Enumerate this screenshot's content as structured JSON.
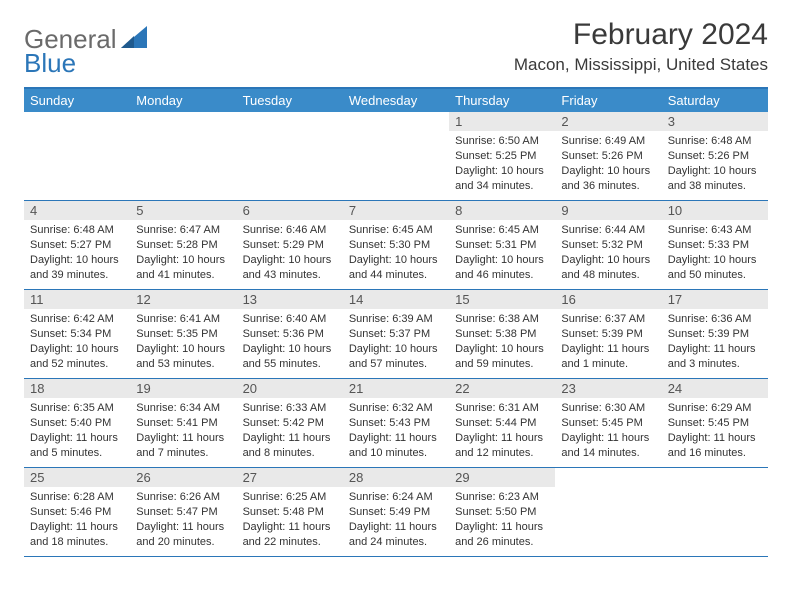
{
  "logo": {
    "part1": "General",
    "part2": "Blue"
  },
  "title": "February 2024",
  "location": "Macon, Mississippi, United States",
  "colors": {
    "accent": "#3a8bc9",
    "border": "#2b76b8",
    "daybar": "#e9e9e9",
    "text": "#333333",
    "logo_gray": "#6a6a6a"
  },
  "daysOfWeek": [
    "Sunday",
    "Monday",
    "Tuesday",
    "Wednesday",
    "Thursday",
    "Friday",
    "Saturday"
  ],
  "weeks": [
    [
      {
        "empty": true
      },
      {
        "empty": true
      },
      {
        "empty": true
      },
      {
        "empty": true
      },
      {
        "day": "1",
        "sunrise": "Sunrise: 6:50 AM",
        "sunset": "Sunset: 5:25 PM",
        "daylight": "Daylight: 10 hours and 34 minutes."
      },
      {
        "day": "2",
        "sunrise": "Sunrise: 6:49 AM",
        "sunset": "Sunset: 5:26 PM",
        "daylight": "Daylight: 10 hours and 36 minutes."
      },
      {
        "day": "3",
        "sunrise": "Sunrise: 6:48 AM",
        "sunset": "Sunset: 5:26 PM",
        "daylight": "Daylight: 10 hours and 38 minutes."
      }
    ],
    [
      {
        "day": "4",
        "sunrise": "Sunrise: 6:48 AM",
        "sunset": "Sunset: 5:27 PM",
        "daylight": "Daylight: 10 hours and 39 minutes."
      },
      {
        "day": "5",
        "sunrise": "Sunrise: 6:47 AM",
        "sunset": "Sunset: 5:28 PM",
        "daylight": "Daylight: 10 hours and 41 minutes."
      },
      {
        "day": "6",
        "sunrise": "Sunrise: 6:46 AM",
        "sunset": "Sunset: 5:29 PM",
        "daylight": "Daylight: 10 hours and 43 minutes."
      },
      {
        "day": "7",
        "sunrise": "Sunrise: 6:45 AM",
        "sunset": "Sunset: 5:30 PM",
        "daylight": "Daylight: 10 hours and 44 minutes."
      },
      {
        "day": "8",
        "sunrise": "Sunrise: 6:45 AM",
        "sunset": "Sunset: 5:31 PM",
        "daylight": "Daylight: 10 hours and 46 minutes."
      },
      {
        "day": "9",
        "sunrise": "Sunrise: 6:44 AM",
        "sunset": "Sunset: 5:32 PM",
        "daylight": "Daylight: 10 hours and 48 minutes."
      },
      {
        "day": "10",
        "sunrise": "Sunrise: 6:43 AM",
        "sunset": "Sunset: 5:33 PM",
        "daylight": "Daylight: 10 hours and 50 minutes."
      }
    ],
    [
      {
        "day": "11",
        "sunrise": "Sunrise: 6:42 AM",
        "sunset": "Sunset: 5:34 PM",
        "daylight": "Daylight: 10 hours and 52 minutes."
      },
      {
        "day": "12",
        "sunrise": "Sunrise: 6:41 AM",
        "sunset": "Sunset: 5:35 PM",
        "daylight": "Daylight: 10 hours and 53 minutes."
      },
      {
        "day": "13",
        "sunrise": "Sunrise: 6:40 AM",
        "sunset": "Sunset: 5:36 PM",
        "daylight": "Daylight: 10 hours and 55 minutes."
      },
      {
        "day": "14",
        "sunrise": "Sunrise: 6:39 AM",
        "sunset": "Sunset: 5:37 PM",
        "daylight": "Daylight: 10 hours and 57 minutes."
      },
      {
        "day": "15",
        "sunrise": "Sunrise: 6:38 AM",
        "sunset": "Sunset: 5:38 PM",
        "daylight": "Daylight: 10 hours and 59 minutes."
      },
      {
        "day": "16",
        "sunrise": "Sunrise: 6:37 AM",
        "sunset": "Sunset: 5:39 PM",
        "daylight": "Daylight: 11 hours and 1 minute."
      },
      {
        "day": "17",
        "sunrise": "Sunrise: 6:36 AM",
        "sunset": "Sunset: 5:39 PM",
        "daylight": "Daylight: 11 hours and 3 minutes."
      }
    ],
    [
      {
        "day": "18",
        "sunrise": "Sunrise: 6:35 AM",
        "sunset": "Sunset: 5:40 PM",
        "daylight": "Daylight: 11 hours and 5 minutes."
      },
      {
        "day": "19",
        "sunrise": "Sunrise: 6:34 AM",
        "sunset": "Sunset: 5:41 PM",
        "daylight": "Daylight: 11 hours and 7 minutes."
      },
      {
        "day": "20",
        "sunrise": "Sunrise: 6:33 AM",
        "sunset": "Sunset: 5:42 PM",
        "daylight": "Daylight: 11 hours and 8 minutes."
      },
      {
        "day": "21",
        "sunrise": "Sunrise: 6:32 AM",
        "sunset": "Sunset: 5:43 PM",
        "daylight": "Daylight: 11 hours and 10 minutes."
      },
      {
        "day": "22",
        "sunrise": "Sunrise: 6:31 AM",
        "sunset": "Sunset: 5:44 PM",
        "daylight": "Daylight: 11 hours and 12 minutes."
      },
      {
        "day": "23",
        "sunrise": "Sunrise: 6:30 AM",
        "sunset": "Sunset: 5:45 PM",
        "daylight": "Daylight: 11 hours and 14 minutes."
      },
      {
        "day": "24",
        "sunrise": "Sunrise: 6:29 AM",
        "sunset": "Sunset: 5:45 PM",
        "daylight": "Daylight: 11 hours and 16 minutes."
      }
    ],
    [
      {
        "day": "25",
        "sunrise": "Sunrise: 6:28 AM",
        "sunset": "Sunset: 5:46 PM",
        "daylight": "Daylight: 11 hours and 18 minutes."
      },
      {
        "day": "26",
        "sunrise": "Sunrise: 6:26 AM",
        "sunset": "Sunset: 5:47 PM",
        "daylight": "Daylight: 11 hours and 20 minutes."
      },
      {
        "day": "27",
        "sunrise": "Sunrise: 6:25 AM",
        "sunset": "Sunset: 5:48 PM",
        "daylight": "Daylight: 11 hours and 22 minutes."
      },
      {
        "day": "28",
        "sunrise": "Sunrise: 6:24 AM",
        "sunset": "Sunset: 5:49 PM",
        "daylight": "Daylight: 11 hours and 24 minutes."
      },
      {
        "day": "29",
        "sunrise": "Sunrise: 6:23 AM",
        "sunset": "Sunset: 5:50 PM",
        "daylight": "Daylight: 11 hours and 26 minutes."
      },
      {
        "empty": true
      },
      {
        "empty": true
      }
    ]
  ]
}
